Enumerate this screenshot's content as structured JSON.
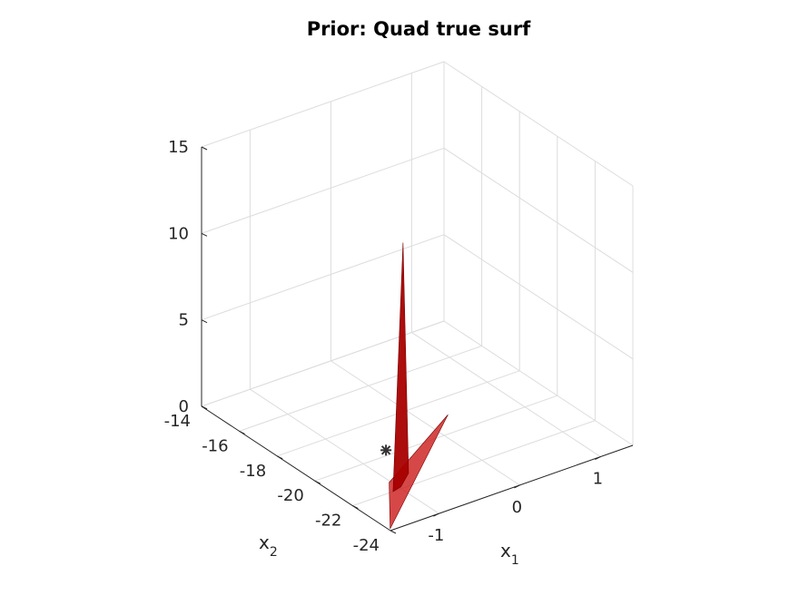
{
  "chart_data": {
    "type": "surface3d",
    "title": "Prior: Quad true surf",
    "xlabel": "x",
    "xlabel_sub": "1",
    "ylabel": "x",
    "ylabel_sub": "2",
    "zlabel": "",
    "xlim": [
      -1.6,
      1.4
    ],
    "ylim": [
      -24,
      -14
    ],
    "zlim": [
      0,
      15
    ],
    "x_ticks": [
      -1,
      0,
      1
    ],
    "x_tick_labels": [
      "-1",
      "0",
      "1"
    ],
    "y_ticks": [
      -24,
      -22,
      -20,
      -18,
      -16,
      -14
    ],
    "y_tick_labels": [
      "-24",
      "-22",
      "-20",
      "-18",
      "-16",
      "-14"
    ],
    "z_ticks": [
      0,
      5,
      10,
      15
    ],
    "z_tick_labels": [
      "0",
      "5",
      "10",
      "15"
    ],
    "grid": true,
    "surface_color": "#d02020",
    "marker": {
      "x": -0.65,
      "y": -19.7,
      "z": 0,
      "symbol": "asterisk",
      "color": "#333333"
    },
    "surfaces": [
      {
        "name": "",
        "color": "#cc1a1a",
        "opacity": 0.8,
        "points": [
          {
            "x": -1.58,
            "y": -23.9,
            "z": 0.0
          },
          {
            "x": -0.35,
            "y": -21.7,
            "z": 3.0
          },
          {
            "x": -1.02,
            "y": -21.45,
            "z": 0.0
          }
        ]
      },
      {
        "name": "",
        "color": "#a80000",
        "opacity": 0.95,
        "points": [
          {
            "x": -1.1,
            "y": -22.0,
            "z": 0.0
          },
          {
            "x": -1.0,
            "y": -22.1,
            "z": 14.3
          },
          {
            "x": -0.92,
            "y": -22.05,
            "z": 0.8
          },
          {
            "x": -0.98,
            "y": -21.9,
            "z": 0.0
          }
        ]
      }
    ]
  }
}
